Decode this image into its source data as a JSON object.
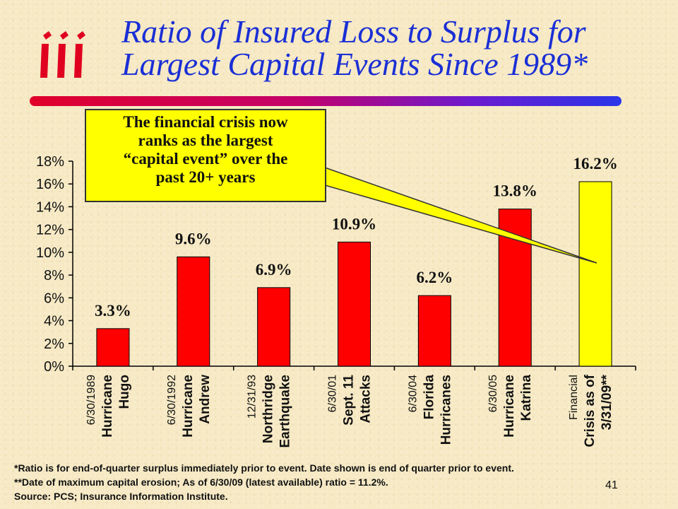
{
  "header": {
    "logo_text": "iii",
    "title_line1": "Ratio of Insured Loss to Surplus for",
    "title_line2": "Largest Capital Events Since 1989*"
  },
  "callout": {
    "lines": [
      "The financial crisis now",
      "ranks as the largest",
      "“capital event” over the",
      "past 20+ years"
    ]
  },
  "chart_data": {
    "type": "bar",
    "categories": [
      [
        "6/30/1989",
        "Hurricane",
        "Hugo"
      ],
      [
        "6/30/1992",
        "Hurricane",
        "Andrew"
      ],
      [
        "12/31/93",
        "Northridge",
        "Earthquake"
      ],
      [
        "6/30/01",
        "Sept. 11",
        "Attacks"
      ],
      [
        "6/30/04",
        "Florida",
        "Hurricanes"
      ],
      [
        "6/30/05",
        "Hurricane",
        "Katrina"
      ],
      [
        "Financial",
        "Crisis as of",
        "3/31/09**"
      ]
    ],
    "values": [
      3.3,
      9.6,
      6.9,
      10.9,
      6.2,
      13.8,
      16.2
    ],
    "data_labels": [
      "3.3%",
      "9.6%",
      "6.9%",
      "10.9%",
      "6.2%",
      "13.8%",
      "16.2%"
    ],
    "bar_colors": [
      "#ff0000",
      "#ff0000",
      "#ff0000",
      "#ff0000",
      "#ff0000",
      "#ff0000",
      "#ffff00"
    ],
    "y_ticks": [
      0,
      2,
      4,
      6,
      8,
      10,
      12,
      14,
      16,
      18
    ],
    "y_tick_labels": [
      "0%",
      "2%",
      "4%",
      "6%",
      "8%",
      "10%",
      "12%",
      "14%",
      "16%",
      "18%"
    ],
    "ylim": [
      0,
      18
    ],
    "grid": false,
    "title": "Ratio of Insured Loss to Surplus for Largest Capital Events Since 1989*"
  },
  "footnotes": {
    "line1": "*Ratio is for end-of-quarter surplus immediately prior to event. Date shown is end of quarter prior to event.",
    "line2": "**Date of maximum capital erosion; As of 6/30/09 (latest available) ratio = 11.2%.",
    "line3": "Source: PCS; Insurance Information Institute."
  },
  "page_number": "41"
}
